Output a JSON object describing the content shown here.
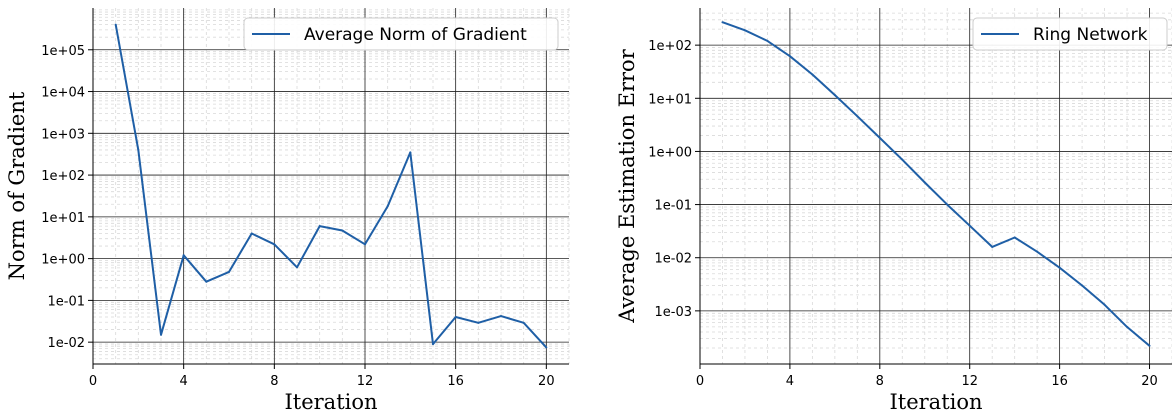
{
  "chart_data": [
    {
      "type": "line",
      "xlabel": "Iteration",
      "ylabel": "Norm of Gradient",
      "yscale": "log",
      "xlim": [
        0,
        21
      ],
      "ylim": [
        0.003,
        1000000
      ],
      "xticks": [
        0,
        4,
        8,
        12,
        16,
        20
      ],
      "xtick_labels": [
        "0",
        "4",
        "8",
        "12",
        "16",
        "20"
      ],
      "yticks": [
        0.01,
        0.1,
        1,
        10,
        100,
        1000,
        10000,
        100000
      ],
      "ytick_labels": [
        "1e-02",
        "1e-01",
        "1e+00",
        "1e+01",
        "1e+02",
        "1e+03",
        "1e+04",
        "1e+05"
      ],
      "grid": true,
      "legend_position": "top-right",
      "series": [
        {
          "name": "Average Norm of Gradient",
          "color": "#1f5fa6",
          "x": [
            1,
            2,
            3,
            4,
            5,
            6,
            7,
            8,
            9,
            10,
            11,
            12,
            13,
            14,
            15,
            16,
            17,
            18,
            19,
            20
          ],
          "y": [
            400000,
            400,
            0.015,
            1.2,
            0.28,
            0.48,
            4,
            2.2,
            0.62,
            6,
            4.7,
            2.2,
            18,
            350,
            0.009,
            0.04,
            0.029,
            0.042,
            0.029,
            0.0075
          ]
        }
      ]
    },
    {
      "type": "line",
      "xlabel": "Iteration",
      "ylabel": "Average Estimation Error",
      "yscale": "log",
      "xlim": [
        0,
        21
      ],
      "ylim": [
        0.0001,
        500
      ],
      "xticks": [
        0,
        4,
        8,
        12,
        16,
        20
      ],
      "xtick_labels": [
        "0",
        "4",
        "8",
        "12",
        "16",
        "20"
      ],
      "yticks": [
        0.001,
        0.01,
        0.1,
        1,
        10,
        100
      ],
      "ytick_labels": [
        "1e-03",
        "1e-02",
        "1e-01",
        "1e+00",
        "1e+01",
        "1e+02"
      ],
      "grid": true,
      "legend_position": "top-right",
      "series": [
        {
          "name": "Ring Network",
          "color": "#1f5fa6",
          "x": [
            1,
            2,
            3,
            4,
            5,
            6,
            7,
            8,
            9,
            10,
            11,
            12,
            13,
            14,
            15,
            16,
            17,
            18,
            19,
            20
          ],
          "y": [
            270,
            190,
            120,
            62,
            28,
            11.5,
            4.6,
            1.8,
            0.7,
            0.26,
            0.1,
            0.04,
            0.016,
            0.024,
            0.013,
            0.0065,
            0.003,
            0.0013,
            0.0005,
            0.00022
          ]
        }
      ]
    }
  ]
}
